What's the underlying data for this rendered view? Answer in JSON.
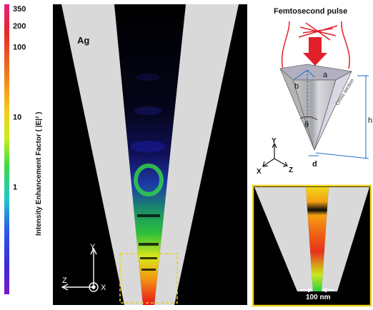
{
  "colorbar": {
    "label": "Intensity Enhancement Factor ( |E|² )",
    "ticks": [
      {
        "label": "350",
        "value": 350
      },
      {
        "label": "200",
        "value": 200
      },
      {
        "label": "100",
        "value": 100
      },
      {
        "label": "10",
        "value": 10
      },
      {
        "label": "1",
        "value": 1
      }
    ],
    "scale": "log",
    "gradient_colors": [
      "#e0227a",
      "#e8282a",
      "#f07a1a",
      "#f5c81a",
      "#c8f01a",
      "#3ad84a",
      "#22c8c8",
      "#2a5ae8",
      "#3a2ad8",
      "#7a1ac8"
    ]
  },
  "main_panel": {
    "material_label": "Ag",
    "axes": {
      "y": "Y",
      "z": "Z",
      "x": "X"
    }
  },
  "schematic": {
    "title": "Femtosecond pulse",
    "labels": {
      "a": "a",
      "b": "b",
      "theta": "θ",
      "cross_section": "Cross section",
      "h": "h",
      "d": "d"
    },
    "axes": {
      "y": "Y",
      "x": "X",
      "z": "Z"
    }
  },
  "zoom_panel": {
    "scale_label": "100 nm",
    "border_color": "#f2d21a"
  }
}
